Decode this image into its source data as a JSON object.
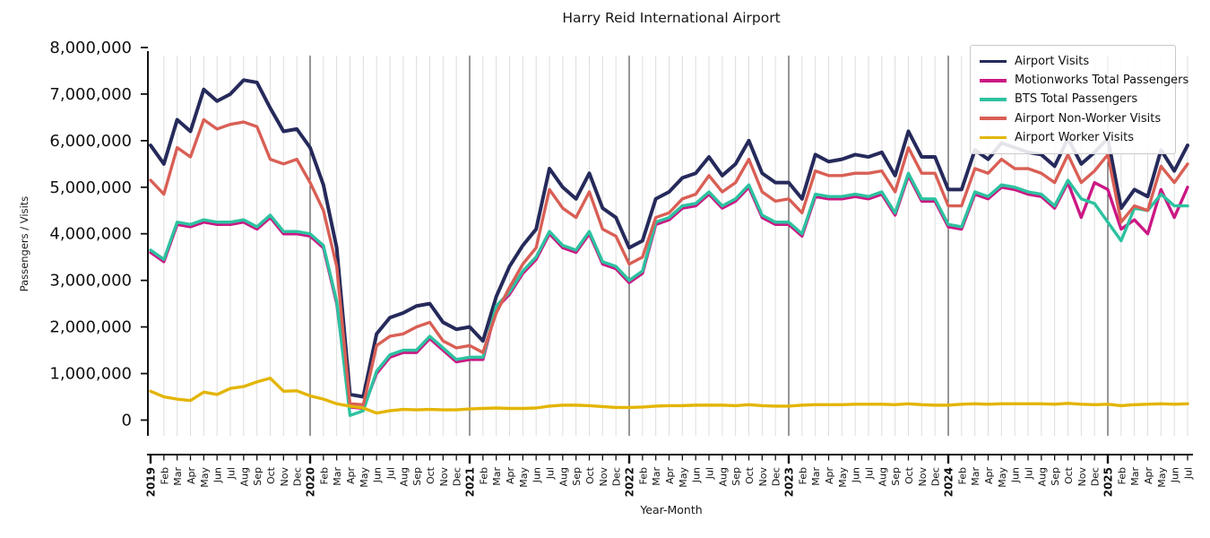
{
  "title": "Harry Reid International Airport",
  "axes": {
    "xlabel": "Year-Month",
    "ylabel": "Passengers / Visits",
    "ylim": [
      0,
      8000000
    ],
    "ytick_values": [
      0,
      1000000,
      2000000,
      3000000,
      4000000,
      5000000,
      6000000,
      7000000,
      8000000
    ],
    "ytick_labels": [
      "0",
      "1,000,000",
      "2,000,000",
      "3,000,000",
      "4,000,000",
      "5,000,000",
      "6,000,000",
      "7,000,000",
      "8,000,000"
    ],
    "grid": "vertical-monthly, dark line at each January"
  },
  "legend": {
    "position": "upper right",
    "entries": [
      {
        "label": "Airport Visits",
        "color": "#262a5b"
      },
      {
        "label": "Motionworks Total Passengers",
        "color": "#cb1884"
      },
      {
        "label": "BTS Total Passengers",
        "color": "#2dc2a0"
      },
      {
        "label": "Airport Non-Worker Visits",
        "color": "#d95f55"
      },
      {
        "label": "Airport Worker Visits",
        "color": "#e3b505"
      }
    ]
  },
  "chart_data": {
    "type": "line",
    "x": [
      "2019",
      "Feb",
      "Mar",
      "Apr",
      "May",
      "Jun",
      "Jul",
      "Aug",
      "Sep",
      "Oct",
      "Nov",
      "Dec",
      "2020",
      "Feb",
      "Mar",
      "Apr",
      "May",
      "Jun",
      "Jul",
      "Aug",
      "Sep",
      "Oct",
      "Nov",
      "Dec",
      "2021",
      "Feb",
      "Mar",
      "Apr",
      "May",
      "Jun",
      "Jul",
      "Aug",
      "Sep",
      "Oct",
      "Nov",
      "Dec",
      "2022",
      "Feb",
      "Mar",
      "Apr",
      "May",
      "Jun",
      "Jul",
      "Aug",
      "Sep",
      "Oct",
      "Nov",
      "Dec",
      "2023",
      "Feb",
      "Mar",
      "Apr",
      "May",
      "Jun",
      "Jul",
      "Aug",
      "Sep",
      "Oct",
      "Nov",
      "Dec",
      "2024",
      "Feb",
      "Mar",
      "Apr",
      "May",
      "Jun",
      "Jul",
      "Aug",
      "Sep",
      "Oct",
      "Nov",
      "Dec",
      "2025",
      "Feb",
      "Mar",
      "Apr",
      "May",
      "Jun",
      "Jul"
    ],
    "series": [
      {
        "name": "Airport Visits",
        "color": "#262a5b",
        "linewidth": 4,
        "values": [
          5900000,
          5500000,
          6450000,
          6200000,
          7100000,
          6850000,
          7000000,
          7300000,
          7250000,
          6700000,
          6200000,
          6250000,
          5850000,
          5050000,
          3700000,
          550000,
          500000,
          1850000,
          2200000,
          2300000,
          2450000,
          2500000,
          2100000,
          1950000,
          2000000,
          1700000,
          2650000,
          3300000,
          3750000,
          4100000,
          5400000,
          5000000,
          4750000,
          5300000,
          4550000,
          4350000,
          3700000,
          3850000,
          4750000,
          4900000,
          5200000,
          5300000,
          5650000,
          5250000,
          5500000,
          6000000,
          5300000,
          5100000,
          5100000,
          4750000,
          5700000,
          5550000,
          5600000,
          5700000,
          5650000,
          5750000,
          5250000,
          6200000,
          5650000,
          5650000,
          4950000,
          4950000,
          5800000,
          5600000,
          5950000,
          5850000,
          5750000,
          5700000,
          5450000,
          6050000,
          5500000,
          5750000,
          6050000,
          4550000,
          4950000,
          4800000,
          5800000,
          5350000,
          5900000
        ]
      },
      {
        "name": "Motionworks Total Passengers",
        "color": "#cb1884",
        "linewidth": 3.4,
        "values": [
          3600000,
          3400000,
          4200000,
          4150000,
          4250000,
          4200000,
          4200000,
          4250000,
          4100000,
          4350000,
          4000000,
          4000000,
          3950000,
          3700000,
          2500000,
          280000,
          250000,
          1000000,
          1350000,
          1450000,
          1450000,
          1750000,
          1500000,
          1250000,
          1300000,
          1300000,
          2400000,
          2700000,
          3150000,
          3450000,
          4000000,
          3700000,
          3600000,
          4000000,
          3350000,
          3250000,
          2950000,
          3150000,
          4200000,
          4300000,
          4550000,
          4600000,
          4850000,
          4550000,
          4700000,
          5000000,
          4350000,
          4200000,
          4200000,
          3950000,
          4800000,
          4750000,
          4750000,
          4800000,
          4750000,
          4850000,
          4400000,
          5250000,
          4700000,
          4700000,
          4150000,
          4100000,
          4850000,
          4750000,
          5000000,
          4950000,
          4850000,
          4800000,
          4550000,
          5100000,
          4350000,
          5100000,
          4950000,
          4100000,
          4300000,
          4000000,
          4950000,
          4350000,
          5000000
        ]
      },
      {
        "name": "BTS Total Passengers",
        "color": "#2dc2a0",
        "linewidth": 3.4,
        "values": [
          3650000,
          3450000,
          4250000,
          4200000,
          4300000,
          4250000,
          4250000,
          4300000,
          4150000,
          4400000,
          4050000,
          4050000,
          4000000,
          3750000,
          2550000,
          100000,
          200000,
          1050000,
          1400000,
          1500000,
          1500000,
          1800000,
          1550000,
          1300000,
          1350000,
          1350000,
          2450000,
          2750000,
          3200000,
          3500000,
          4050000,
          3750000,
          3650000,
          4050000,
          3400000,
          3300000,
          3000000,
          3200000,
          4250000,
          4350000,
          4600000,
          4650000,
          4900000,
          4600000,
          4750000,
          5050000,
          4400000,
          4250000,
          4250000,
          4000000,
          4850000,
          4800000,
          4800000,
          4850000,
          4800000,
          4900000,
          4450000,
          5300000,
          4750000,
          4750000,
          4200000,
          4150000,
          4900000,
          4800000,
          5050000,
          5000000,
          4900000,
          4850000,
          4600000,
          5150000,
          4750000,
          4650000,
          4250000,
          3850000,
          4550000,
          4500000,
          4850000,
          4600000,
          4600000
        ]
      },
      {
        "name": "Airport Non-Worker Visits",
        "color": "#d95f55",
        "linewidth": 3.4,
        "values": [
          5150000,
          4850000,
          5850000,
          5650000,
          6450000,
          6250000,
          6350000,
          6400000,
          6300000,
          5600000,
          5500000,
          5600000,
          5100000,
          4500000,
          3300000,
          350000,
          330000,
          1600000,
          1800000,
          1850000,
          2000000,
          2100000,
          1700000,
          1550000,
          1600000,
          1450000,
          2300000,
          2850000,
          3350000,
          3700000,
          4950000,
          4550000,
          4350000,
          4900000,
          4100000,
          3950000,
          3350000,
          3500000,
          4350000,
          4450000,
          4750000,
          4850000,
          5250000,
          4900000,
          5100000,
          5600000,
          4900000,
          4700000,
          4750000,
          4450000,
          5350000,
          5250000,
          5250000,
          5300000,
          5300000,
          5350000,
          4900000,
          5850000,
          5300000,
          5300000,
          4600000,
          4600000,
          5400000,
          5300000,
          5600000,
          5400000,
          5400000,
          5300000,
          5100000,
          5700000,
          5100000,
          5350000,
          5700000,
          4250000,
          4600000,
          4500000,
          5450000,
          5100000,
          5500000
        ]
      },
      {
        "name": "Airport Worker Visits",
        "color": "#e3b505",
        "linewidth": 3.4,
        "values": [
          620000,
          500000,
          450000,
          420000,
          600000,
          550000,
          680000,
          720000,
          820000,
          900000,
          620000,
          630000,
          520000,
          450000,
          350000,
          300000,
          260000,
          150000,
          200000,
          230000,
          220000,
          230000,
          220000,
          220000,
          240000,
          250000,
          260000,
          250000,
          250000,
          260000,
          300000,
          320000,
          320000,
          310000,
          290000,
          270000,
          270000,
          280000,
          300000,
          310000,
          310000,
          320000,
          320000,
          320000,
          310000,
          330000,
          310000,
          300000,
          300000,
          320000,
          330000,
          330000,
          330000,
          340000,
          340000,
          340000,
          330000,
          350000,
          330000,
          320000,
          320000,
          340000,
          350000,
          340000,
          350000,
          350000,
          350000,
          350000,
          340000,
          360000,
          340000,
          330000,
          340000,
          310000,
          330000,
          340000,
          350000,
          340000,
          350000
        ]
      }
    ]
  }
}
